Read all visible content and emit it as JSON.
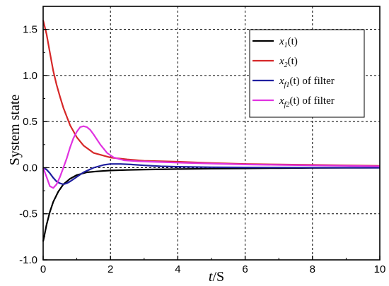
{
  "chart_data": {
    "type": "line",
    "xlabel_var": "t",
    "xlabel_unit": "/S",
    "ylabel": "System state",
    "xlim": [
      0,
      10
    ],
    "ylim": [
      -1.0,
      1.75
    ],
    "x_ticks": [
      0,
      2,
      4,
      6,
      8,
      10
    ],
    "y_ticks": [
      -1.0,
      -0.5,
      0.0,
      0.5,
      1.0,
      1.5
    ],
    "x_tick_labels": [
      "0",
      "2",
      "4",
      "6",
      "8",
      "10"
    ],
    "y_tick_labels": [
      "-1.0",
      "-0.5",
      "0.0",
      "0.5",
      "1.0",
      "1.5"
    ],
    "grid": true,
    "legend_position": "top-right",
    "series": [
      {
        "name": "x1(t)",
        "legend": {
          "var": "x",
          "sub": "1",
          "rest": "(t)"
        },
        "color": "#000000",
        "points": [
          [
            0,
            -0.8
          ],
          [
            0.1,
            -0.62
          ],
          [
            0.2,
            -0.48
          ],
          [
            0.3,
            -0.37
          ],
          [
            0.45,
            -0.26
          ],
          [
            0.6,
            -0.18
          ],
          [
            0.8,
            -0.12
          ],
          [
            1.0,
            -0.08
          ],
          [
            1.3,
            -0.05
          ],
          [
            1.6,
            -0.04
          ],
          [
            2.0,
            -0.03
          ],
          [
            2.5,
            -0.025
          ],
          [
            3,
            -0.02
          ],
          [
            4,
            -0.015
          ],
          [
            5,
            -0.01
          ],
          [
            6,
            -0.008
          ],
          [
            7,
            -0.005
          ],
          [
            8,
            -0.003
          ],
          [
            9,
            -0.002
          ],
          [
            10,
            0.0
          ]
        ]
      },
      {
        "name": "x2(t)",
        "legend": {
          "var": "x",
          "sub": "2",
          "rest": "(t)"
        },
        "color": "#d62728",
        "points": [
          [
            0,
            1.6
          ],
          [
            0.1,
            1.45
          ],
          [
            0.2,
            1.25
          ],
          [
            0.3,
            1.05
          ],
          [
            0.4,
            0.9
          ],
          [
            0.5,
            0.77
          ],
          [
            0.6,
            0.65
          ],
          [
            0.8,
            0.46
          ],
          [
            1.0,
            0.33
          ],
          [
            1.2,
            0.24
          ],
          [
            1.5,
            0.16
          ],
          [
            2.0,
            0.11
          ],
          [
            2.5,
            0.09
          ],
          [
            3,
            0.075
          ],
          [
            3.5,
            0.07
          ],
          [
            4,
            0.065
          ],
          [
            5,
            0.05
          ],
          [
            6,
            0.04
          ],
          [
            7,
            0.035
          ],
          [
            8,
            0.03
          ],
          [
            9,
            0.025
          ],
          [
            10,
            0.02
          ]
        ]
      },
      {
        "name": "xf1(t) of filter",
        "legend": {
          "var": "x",
          "sub": "f1",
          "rest": "(t) of filter"
        },
        "color": "#1f1f9f",
        "points": [
          [
            0,
            0.0
          ],
          [
            0.1,
            -0.02
          ],
          [
            0.2,
            -0.06
          ],
          [
            0.3,
            -0.11
          ],
          [
            0.4,
            -0.15
          ],
          [
            0.5,
            -0.17
          ],
          [
            0.6,
            -0.18
          ],
          [
            0.7,
            -0.17
          ],
          [
            0.8,
            -0.15
          ],
          [
            1.0,
            -0.1
          ],
          [
            1.2,
            -0.05
          ],
          [
            1.5,
            0.0
          ],
          [
            1.8,
            0.03
          ],
          [
            2.0,
            0.04
          ],
          [
            2.3,
            0.04
          ],
          [
            2.6,
            0.035
          ],
          [
            3,
            0.025
          ],
          [
            3.5,
            0.015
          ],
          [
            4,
            0.01
          ],
          [
            5,
            0.005
          ],
          [
            6,
            0.003
          ],
          [
            8,
            0.001
          ],
          [
            10,
            0.0
          ]
        ]
      },
      {
        "name": "xf2(t) of filter",
        "legend": {
          "var": "x",
          "sub": "f2",
          "rest": "(t) of filter"
        },
        "color": "#e032e0",
        "points": [
          [
            0,
            0.0
          ],
          [
            0.1,
            -0.1
          ],
          [
            0.2,
            -0.2
          ],
          [
            0.3,
            -0.22
          ],
          [
            0.4,
            -0.18
          ],
          [
            0.5,
            -0.1
          ],
          [
            0.6,
            0.0
          ],
          [
            0.7,
            0.1
          ],
          [
            0.8,
            0.22
          ],
          [
            0.9,
            0.32
          ],
          [
            1.0,
            0.39
          ],
          [
            1.1,
            0.44
          ],
          [
            1.2,
            0.45
          ],
          [
            1.3,
            0.44
          ],
          [
            1.4,
            0.41
          ],
          [
            1.5,
            0.36
          ],
          [
            1.7,
            0.25
          ],
          [
            1.9,
            0.16
          ],
          [
            2.1,
            0.11
          ],
          [
            2.4,
            0.08
          ],
          [
            2.8,
            0.07
          ],
          [
            3.2,
            0.065
          ],
          [
            3.6,
            0.06
          ],
          [
            4,
            0.055
          ],
          [
            5,
            0.045
          ],
          [
            6,
            0.035
          ],
          [
            7,
            0.03
          ],
          [
            8,
            0.025
          ],
          [
            9,
            0.02
          ],
          [
            10,
            0.015
          ]
        ]
      }
    ]
  }
}
